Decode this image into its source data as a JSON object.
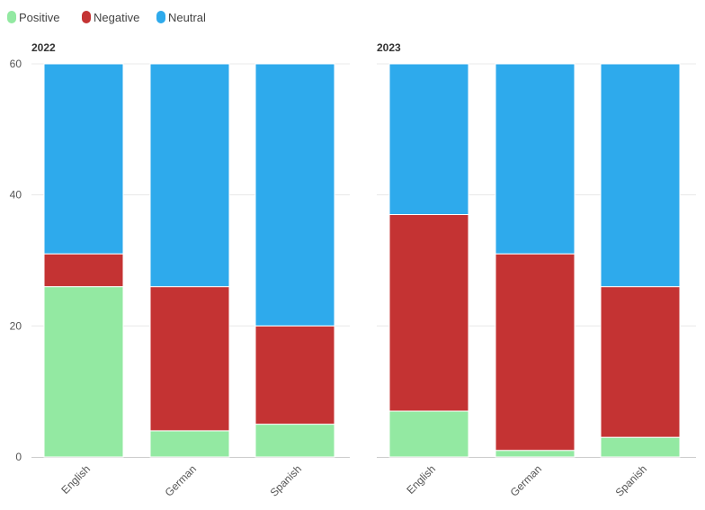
{
  "chart_data": {
    "type": "bar",
    "stacked": true,
    "legend_placement": "top-left",
    "grid": true,
    "categories": [
      "English",
      "German",
      "Spanish"
    ],
    "ylim": [
      0,
      60
    ],
    "yticks": [
      0,
      20,
      40,
      60
    ],
    "series_meta": [
      {
        "name": "Positive",
        "color": "#93e9a2"
      },
      {
        "name": "Negative",
        "color": "#c43333"
      },
      {
        "name": "Neutral",
        "color": "#2eaaec"
      }
    ],
    "panels": [
      {
        "title": "2022",
        "series": [
          {
            "name": "Positive",
            "values": [
              26,
              4,
              5
            ]
          },
          {
            "name": "Negative",
            "values": [
              5,
              22,
              15
            ]
          },
          {
            "name": "Neutral",
            "values": [
              29,
              34,
              40
            ]
          }
        ]
      },
      {
        "title": "2023",
        "series": [
          {
            "name": "Positive",
            "values": [
              7,
              1,
              3
            ]
          },
          {
            "name": "Negative",
            "values": [
              30,
              30,
              23
            ]
          },
          {
            "name": "Neutral",
            "values": [
              23,
              29,
              34
            ]
          }
        ]
      }
    ]
  }
}
